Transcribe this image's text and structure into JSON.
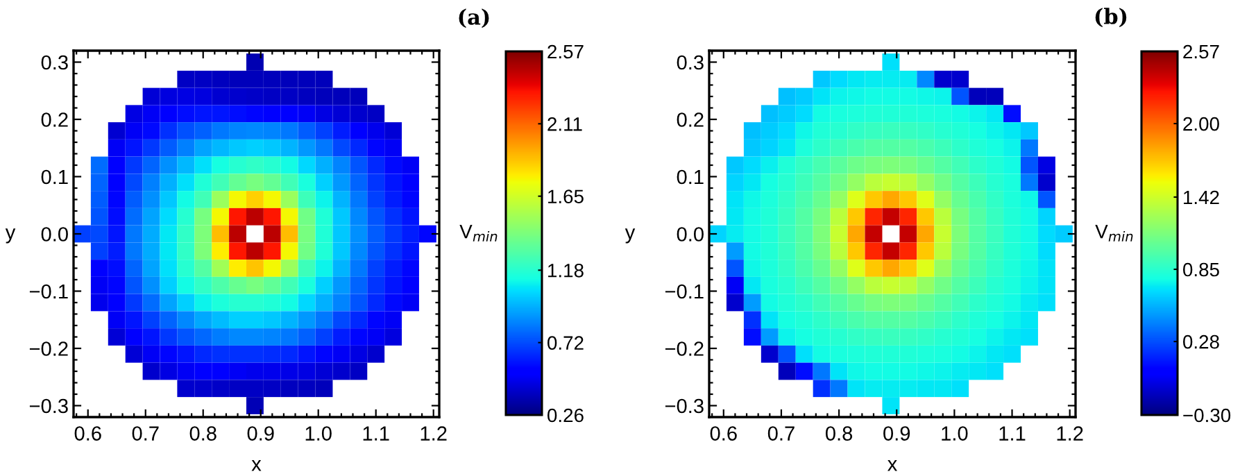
{
  "chart_data": [
    {
      "type": "heatmap",
      "annotations": [
        "(a)"
      ],
      "xlabel": "x",
      "ylabel": "y",
      "clabel": "V$_{min}$",
      "x": [
        0.59,
        0.62,
        0.65,
        0.68,
        0.71,
        0.74,
        0.77,
        0.8,
        0.83,
        0.86,
        0.89,
        0.92,
        0.95,
        0.98,
        1.01,
        1.04,
        1.07,
        1.1,
        1.13,
        1.16,
        1.19
      ],
      "y": [
        0.3,
        0.27,
        0.24,
        0.21,
        0.18,
        0.15,
        0.12,
        0.09,
        0.06,
        0.03,
        0.0,
        -0.03,
        -0.06,
        -0.09,
        -0.12,
        -0.15,
        -0.18,
        -0.21,
        -0.24,
        -0.27,
        -0.3
      ],
      "xlim": [
        0.575,
        1.21
      ],
      "ylim": [
        -0.32,
        0.32
      ],
      "xticks": [
        0.6,
        0.7,
        0.8,
        0.9,
        {
          "value": 1.0,
          "label": "1.0"
        },
        1.1,
        1.2
      ],
      "yticks": [
        {
          "value": -0.3,
          "label": "−0.3"
        },
        {
          "value": -0.2,
          "label": "−0.2"
        },
        {
          "value": -0.1,
          "label": "−0.1"
        },
        {
          "value": 0.0,
          "label": "0.0"
        },
        0.1,
        0.2,
        0.3
      ],
      "clim": [
        0.26,
        2.57
      ],
      "cticks": [
        0.26,
        0.72,
        1.18,
        1.65,
        2.11,
        2.57
      ],
      "cells": [
        [
          null,
          null,
          null,
          null,
          null,
          null,
          null,
          null,
          null,
          null,
          0.36,
          null,
          null,
          null,
          null,
          null,
          null,
          null,
          null,
          null,
          null
        ],
        [
          null,
          null,
          null,
          null,
          null,
          null,
          0.4,
          0.4,
          0.39,
          0.38,
          0.38,
          0.38,
          0.38,
          0.38,
          0.38,
          null,
          null,
          null,
          null,
          null,
          null
        ],
        [
          null,
          null,
          null,
          null,
          0.44,
          0.45,
          0.46,
          0.45,
          0.43,
          0.42,
          0.41,
          0.4,
          0.4,
          0.39,
          0.38,
          0.38,
          0.38,
          null,
          null,
          null,
          null
        ],
        [
          null,
          null,
          null,
          0.46,
          0.5,
          0.55,
          0.58,
          0.6,
          0.6,
          0.58,
          0.56,
          0.55,
          0.53,
          0.5,
          0.46,
          0.44,
          0.42,
          0.4,
          null,
          null,
          null
        ],
        [
          null,
          null,
          0.43,
          0.5,
          0.57,
          0.66,
          0.73,
          0.77,
          0.82,
          0.85,
          0.86,
          0.85,
          0.82,
          0.76,
          0.7,
          0.62,
          0.55,
          0.48,
          0.44,
          null,
          null
        ],
        [
          null,
          null,
          0.5,
          0.6,
          0.68,
          0.76,
          0.84,
          0.92,
          0.97,
          1.0,
          1.02,
          1.0,
          0.96,
          0.9,
          0.82,
          0.72,
          0.64,
          0.56,
          0.5,
          null,
          null
        ],
        [
          null,
          0.8,
          0.52,
          0.68,
          0.78,
          0.88,
          0.97,
          1.06,
          1.13,
          1.18,
          1.2,
          1.18,
          1.12,
          1.04,
          0.95,
          0.85,
          0.74,
          0.64,
          0.57,
          0.5,
          null
        ],
        [
          null,
          0.78,
          0.55,
          0.72,
          0.84,
          0.95,
          1.06,
          1.16,
          1.25,
          1.35,
          1.4,
          1.35,
          1.25,
          1.14,
          1.02,
          0.9,
          0.78,
          0.67,
          0.6,
          0.54,
          null
        ],
        [
          null,
          0.76,
          0.56,
          0.76,
          0.88,
          1.0,
          1.12,
          1.25,
          1.5,
          1.75,
          1.85,
          1.75,
          1.5,
          1.24,
          1.1,
          0.96,
          0.82,
          0.7,
          0.62,
          0.56,
          null
        ],
        [
          null,
          0.74,
          0.58,
          0.8,
          0.92,
          1.05,
          1.18,
          1.4,
          1.75,
          2.3,
          2.45,
          2.3,
          1.75,
          1.38,
          1.16,
          1.0,
          0.86,
          0.74,
          0.66,
          0.6,
          null
        ],
        [
          0.7,
          0.72,
          0.6,
          0.82,
          0.94,
          1.08,
          1.2,
          1.42,
          1.9,
          2.45,
          null,
          2.45,
          1.9,
          1.4,
          1.16,
          1.0,
          0.88,
          0.76,
          0.68,
          0.62,
          0.56
        ],
        [
          null,
          0.7,
          0.62,
          0.82,
          0.94,
          1.08,
          1.2,
          1.42,
          1.78,
          2.3,
          2.45,
          2.3,
          1.75,
          1.38,
          1.16,
          1.0,
          0.86,
          0.74,
          0.66,
          0.6,
          null
        ],
        [
          null,
          0.52,
          0.58,
          0.78,
          0.92,
          1.06,
          1.18,
          1.3,
          1.52,
          1.78,
          1.88,
          1.75,
          1.5,
          1.24,
          1.1,
          0.96,
          0.82,
          0.7,
          0.62,
          0.56,
          null
        ],
        [
          null,
          0.5,
          0.56,
          0.74,
          0.88,
          1.02,
          1.12,
          1.2,
          1.28,
          1.36,
          1.4,
          1.34,
          1.25,
          1.14,
          1.02,
          0.9,
          0.78,
          0.67,
          0.6,
          0.54,
          null
        ],
        [
          null,
          0.48,
          0.54,
          0.68,
          0.8,
          0.92,
          1.02,
          1.1,
          1.15,
          1.18,
          1.18,
          1.16,
          1.12,
          1.04,
          0.95,
          0.85,
          0.74,
          0.64,
          0.57,
          0.5,
          null
        ],
        [
          null,
          null,
          0.5,
          0.6,
          0.7,
          0.78,
          0.86,
          0.93,
          0.98,
          1.02,
          1.02,
          1.0,
          0.96,
          0.9,
          0.82,
          0.72,
          0.64,
          0.56,
          0.5,
          null,
          null
        ],
        [
          null,
          null,
          0.44,
          0.52,
          0.6,
          0.68,
          0.74,
          0.79,
          0.83,
          0.86,
          0.86,
          0.85,
          0.82,
          0.77,
          0.7,
          0.62,
          0.56,
          0.5,
          0.45,
          null,
          null
        ],
        [
          null,
          null,
          null,
          0.44,
          0.5,
          0.56,
          0.6,
          0.64,
          0.66,
          0.66,
          0.66,
          0.65,
          0.64,
          0.6,
          0.56,
          0.5,
          0.46,
          0.42,
          null,
          null,
          null
        ],
        [
          null,
          null,
          null,
          null,
          0.42,
          0.46,
          0.5,
          0.52,
          0.52,
          0.5,
          0.48,
          0.48,
          0.47,
          0.46,
          0.44,
          0.42,
          0.4,
          null,
          null,
          null,
          null
        ],
        [
          null,
          null,
          null,
          null,
          null,
          null,
          0.42,
          0.42,
          0.41,
          0.4,
          0.4,
          0.4,
          0.39,
          0.39,
          0.38,
          null,
          null,
          null,
          null,
          null,
          null
        ],
        [
          null,
          null,
          null,
          null,
          null,
          null,
          null,
          null,
          null,
          null,
          0.37,
          null,
          null,
          null,
          null,
          null,
          null,
          null,
          null,
          null,
          null
        ]
      ]
    },
    {
      "type": "heatmap",
      "annotations": [
        "(b)"
      ],
      "xlabel": "x",
      "ylabel": "y",
      "clabel": "V$_{min}$",
      "x": [
        0.59,
        0.62,
        0.65,
        0.68,
        0.71,
        0.74,
        0.77,
        0.8,
        0.83,
        0.86,
        0.89,
        0.92,
        0.95,
        0.98,
        1.01,
        1.04,
        1.07,
        1.1,
        1.13,
        1.16,
        1.19
      ],
      "y": [
        0.3,
        0.27,
        0.24,
        0.21,
        0.18,
        0.15,
        0.12,
        0.09,
        0.06,
        0.03,
        0.0,
        -0.03,
        -0.06,
        -0.09,
        -0.12,
        -0.15,
        -0.18,
        -0.21,
        -0.24,
        -0.27,
        -0.3
      ],
      "xlim": [
        0.575,
        1.21
      ],
      "ylim": [
        -0.32,
        0.32
      ],
      "xticks": [
        0.6,
        0.7,
        0.8,
        0.9,
        {
          "value": 1.0,
          "label": "1.0"
        },
        1.1,
        1.2
      ],
      "yticks": [
        {
          "value": -0.3,
          "label": "−0.3"
        },
        {
          "value": -0.2,
          "label": "−0.2"
        },
        {
          "value": -0.1,
          "label": "−0.1"
        },
        {
          "value": 0.0,
          "label": "0.0"
        },
        0.1,
        0.2,
        0.3
      ],
      "clim": [
        -0.3,
        2.57
      ],
      "cticks": [
        {
          "value": -0.3,
          "label": "−0.30"
        },
        0.28,
        0.85,
        1.42,
        {
          "value": 2.0,
          "label": "2.00"
        },
        2.57
      ],
      "cells": [
        [
          null,
          null,
          null,
          null,
          null,
          null,
          null,
          null,
          null,
          null,
          0.69,
          null,
          null,
          null,
          null,
          null,
          null,
          null,
          null,
          null,
          null
        ],
        [
          null,
          null,
          null,
          null,
          null,
          null,
          0.62,
          0.68,
          0.72,
          0.73,
          0.73,
          0.73,
          0.45,
          -0.1,
          -0.1,
          null,
          null,
          null,
          null,
          null,
          null
        ],
        [
          null,
          null,
          null,
          null,
          0.6,
          0.64,
          0.7,
          0.75,
          0.76,
          0.77,
          0.77,
          0.77,
          0.76,
          0.75,
          0.3,
          -0.15,
          -0.15,
          null,
          null,
          null,
          null
        ],
        [
          null,
          null,
          null,
          0.6,
          0.64,
          0.68,
          0.77,
          0.79,
          0.8,
          0.82,
          0.82,
          0.82,
          0.8,
          0.79,
          0.77,
          0.75,
          0.72,
          0.1,
          null,
          null,
          null
        ],
        [
          null,
          null,
          0.6,
          0.64,
          0.68,
          0.76,
          0.81,
          0.84,
          0.87,
          0.89,
          0.9,
          0.89,
          0.87,
          0.84,
          0.81,
          0.78,
          0.75,
          0.72,
          0.62,
          null,
          null
        ],
        [
          null,
          null,
          0.62,
          0.66,
          0.72,
          0.8,
          0.86,
          0.92,
          0.96,
          0.99,
          1.0,
          0.99,
          0.96,
          0.92,
          0.86,
          0.82,
          0.78,
          0.75,
          0.4,
          null,
          null
        ],
        [
          null,
          0.62,
          0.68,
          0.74,
          0.81,
          0.88,
          0.95,
          1.02,
          1.08,
          1.12,
          1.14,
          1.12,
          1.06,
          1.0,
          0.93,
          0.86,
          0.81,
          0.77,
          0.3,
          -0.05,
          null
        ],
        [
          null,
          0.66,
          0.72,
          0.78,
          0.84,
          0.92,
          1.0,
          1.1,
          1.22,
          1.35,
          1.4,
          1.35,
          1.22,
          1.1,
          1.0,
          0.92,
          0.84,
          0.79,
          0.4,
          -0.1,
          null
        ],
        [
          null,
          0.7,
          0.76,
          0.8,
          0.87,
          0.96,
          1.06,
          1.22,
          1.48,
          1.7,
          1.8,
          1.7,
          1.48,
          1.22,
          1.06,
          0.96,
          0.87,
          0.8,
          0.76,
          0.3,
          null
        ],
        [
          null,
          0.72,
          0.77,
          0.82,
          0.89,
          0.99,
          1.12,
          1.35,
          1.7,
          2.2,
          2.4,
          2.2,
          1.7,
          1.35,
          1.12,
          0.99,
          0.89,
          0.82,
          0.77,
          0.66,
          null
        ],
        [
          0.66,
          0.73,
          0.77,
          0.82,
          0.9,
          1.0,
          1.14,
          1.4,
          1.8,
          2.4,
          null,
          2.4,
          1.8,
          1.4,
          1.14,
          1.0,
          0.9,
          0.82,
          0.77,
          0.68,
          0.64
        ],
        [
          null,
          0.5,
          0.77,
          0.82,
          0.89,
          0.99,
          1.12,
          1.35,
          1.7,
          2.2,
          2.4,
          2.2,
          1.7,
          1.35,
          1.12,
          0.99,
          0.89,
          0.82,
          0.77,
          0.68,
          null
        ],
        [
          null,
          0.3,
          0.76,
          0.8,
          0.87,
          0.96,
          1.06,
          1.22,
          1.48,
          1.7,
          1.8,
          1.7,
          1.48,
          1.22,
          1.06,
          0.96,
          0.87,
          0.8,
          0.76,
          0.7,
          null
        ],
        [
          null,
          0.0,
          0.71,
          0.79,
          0.84,
          0.92,
          1.0,
          1.1,
          1.22,
          1.35,
          1.4,
          1.35,
          1.22,
          1.1,
          1.0,
          0.92,
          0.84,
          0.79,
          0.75,
          0.7,
          null
        ],
        [
          null,
          -0.1,
          0.5,
          0.77,
          0.81,
          0.86,
          0.93,
          1.0,
          1.06,
          1.12,
          1.14,
          1.12,
          1.06,
          1.0,
          0.93,
          0.86,
          0.81,
          0.77,
          0.73,
          0.69,
          null
        ],
        [
          null,
          null,
          0.2,
          0.7,
          0.78,
          0.82,
          0.86,
          0.92,
          0.96,
          0.99,
          1.0,
          0.99,
          0.96,
          0.92,
          0.86,
          0.82,
          0.78,
          0.75,
          0.71,
          null,
          null
        ],
        [
          null,
          null,
          0.1,
          0.5,
          0.75,
          0.78,
          0.81,
          0.84,
          0.87,
          0.89,
          0.9,
          0.89,
          0.87,
          0.84,
          0.81,
          0.78,
          0.75,
          0.72,
          0.69,
          null,
          null
        ],
        [
          null,
          null,
          null,
          -0.1,
          0.3,
          0.69,
          0.77,
          0.79,
          0.8,
          0.82,
          0.82,
          0.82,
          0.8,
          0.79,
          0.77,
          0.75,
          0.72,
          0.69,
          null,
          null,
          null
        ],
        [
          null,
          null,
          null,
          null,
          -0.15,
          0.1,
          0.4,
          0.7,
          0.76,
          0.77,
          0.77,
          0.77,
          0.76,
          0.75,
          0.73,
          0.71,
          0.69,
          null,
          null,
          null,
          null
        ],
        [
          null,
          null,
          null,
          null,
          null,
          null,
          0.2,
          0.4,
          0.7,
          0.73,
          0.73,
          0.73,
          0.72,
          0.71,
          0.69,
          null,
          null,
          null,
          null,
          null,
          null
        ],
        [
          null,
          null,
          null,
          null,
          null,
          null,
          null,
          null,
          null,
          null,
          0.7,
          null,
          null,
          null,
          null,
          null,
          null,
          null,
          null,
          null,
          null
        ]
      ]
    }
  ]
}
